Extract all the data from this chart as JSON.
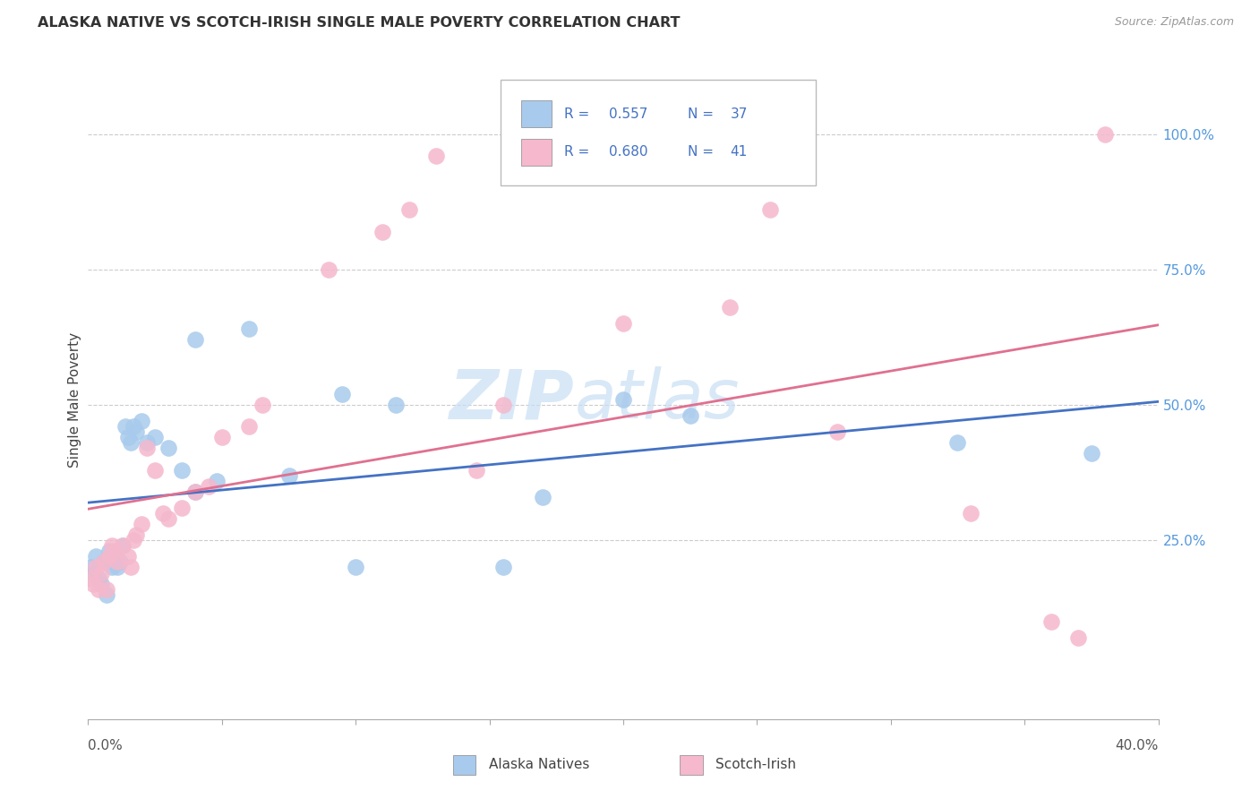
{
  "title": "ALASKA NATIVE VS SCOTCH-IRISH SINGLE MALE POVERTY CORRELATION CHART",
  "source": "Source: ZipAtlas.com",
  "ylabel": "Single Male Poverty",
  "ytick_labels": [
    "25.0%",
    "50.0%",
    "75.0%",
    "100.0%"
  ],
  "ytick_vals": [
    0.25,
    0.5,
    0.75,
    1.0
  ],
  "xmin": 0.0,
  "xmax": 0.4,
  "ymin": -0.08,
  "ymax": 1.1,
  "legend_r_blue": "0.557",
  "legend_n_blue": "37",
  "legend_r_pink": "0.680",
  "legend_n_pink": "41",
  "blue_scatter": "#A8CAEC",
  "pink_scatter": "#F5B8CC",
  "line_blue": "#4472C4",
  "line_pink": "#E07090",
  "legend_value_color": "#4472C4",
  "watermark_color": "#C8DFF5",
  "grid_color": "#CCCCCC",
  "alaska_x": [
    0.001,
    0.002,
    0.003,
    0.004,
    0.005,
    0.006,
    0.007,
    0.008,
    0.009,
    0.01,
    0.011,
    0.012,
    0.013,
    0.014,
    0.015,
    0.016,
    0.017,
    0.018,
    0.02,
    0.022,
    0.025,
    0.03,
    0.035,
    0.04,
    0.048,
    0.06,
    0.075,
    0.1,
    0.115,
    0.155,
    0.2,
    0.225,
    0.325,
    0.375,
    0.095,
    0.17,
    0.04
  ],
  "alaska_y": [
    0.2,
    0.19,
    0.22,
    0.18,
    0.17,
    0.21,
    0.15,
    0.23,
    0.2,
    0.22,
    0.2,
    0.21,
    0.24,
    0.46,
    0.44,
    0.43,
    0.46,
    0.45,
    0.47,
    0.43,
    0.44,
    0.42,
    0.38,
    0.34,
    0.36,
    0.64,
    0.37,
    0.2,
    0.5,
    0.2,
    0.51,
    0.48,
    0.43,
    0.41,
    0.52,
    0.33,
    0.62
  ],
  "scotch_x": [
    0.001,
    0.002,
    0.003,
    0.004,
    0.005,
    0.006,
    0.007,
    0.008,
    0.009,
    0.01,
    0.011,
    0.013,
    0.015,
    0.016,
    0.017,
    0.018,
    0.02,
    0.022,
    0.025,
    0.028,
    0.03,
    0.035,
    0.04,
    0.045,
    0.05,
    0.06,
    0.065,
    0.09,
    0.11,
    0.12,
    0.13,
    0.145,
    0.155,
    0.2,
    0.24,
    0.255,
    0.28,
    0.33,
    0.36,
    0.37,
    0.38
  ],
  "scotch_y": [
    0.18,
    0.17,
    0.2,
    0.16,
    0.19,
    0.21,
    0.16,
    0.22,
    0.24,
    0.23,
    0.21,
    0.24,
    0.22,
    0.2,
    0.25,
    0.26,
    0.28,
    0.42,
    0.38,
    0.3,
    0.29,
    0.31,
    0.34,
    0.35,
    0.44,
    0.46,
    0.5,
    0.75,
    0.82,
    0.86,
    0.96,
    0.38,
    0.5,
    0.65,
    0.68,
    0.86,
    0.45,
    0.3,
    0.1,
    0.07,
    1.0
  ]
}
